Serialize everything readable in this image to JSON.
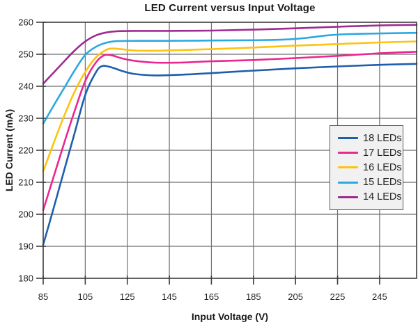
{
  "chart_data": {
    "type": "line",
    "title": "LED Current versus Input Voltage",
    "xlabel": "Input Voltage (V)",
    "ylabel": "LED Current (mA)",
    "xlim": [
      85,
      262.6
    ],
    "ylim": [
      180,
      260
    ],
    "xticks": [
      85,
      105,
      125,
      145,
      165,
      185,
      205,
      225,
      245
    ],
    "yticks": [
      180,
      190,
      200,
      210,
      220,
      230,
      240,
      250,
      260
    ],
    "grid": true,
    "legend_position": "center-right",
    "series": [
      {
        "name": "18 LEDs",
        "color": "#1E5FAC",
        "points": [
          [
            85,
            190.5
          ],
          [
            90,
            202.0
          ],
          [
            95,
            213.8
          ],
          [
            100,
            225.5
          ],
          [
            105,
            237.3
          ],
          [
            110,
            244.3
          ],
          [
            113,
            246.3
          ],
          [
            117,
            246.0
          ],
          [
            122,
            244.9
          ],
          [
            128,
            243.9
          ],
          [
            138,
            243.4
          ],
          [
            150,
            243.6
          ],
          [
            165,
            244.1
          ],
          [
            185,
            244.9
          ],
          [
            205,
            245.6
          ],
          [
            225,
            246.2
          ],
          [
            245,
            246.7
          ],
          [
            262.6,
            247.0
          ]
        ]
      },
      {
        "name": "17 LEDs",
        "color": "#EC268F",
        "points": [
          [
            85,
            201.3
          ],
          [
            90,
            211.8
          ],
          [
            95,
            222.3
          ],
          [
            100,
            232.4
          ],
          [
            105,
            241.6
          ],
          [
            110,
            247.4
          ],
          [
            114,
            249.7
          ],
          [
            118,
            249.6
          ],
          [
            122,
            248.8
          ],
          [
            128,
            248.0
          ],
          [
            138,
            247.4
          ],
          [
            150,
            247.4
          ],
          [
            165,
            247.8
          ],
          [
            185,
            248.2
          ],
          [
            205,
            248.8
          ],
          [
            225,
            249.5
          ],
          [
            245,
            250.3
          ],
          [
            262.6,
            250.8
          ]
        ]
      },
      {
        "name": "16 LEDs",
        "color": "#FFC20E",
        "points": [
          [
            85,
            213.4
          ],
          [
            90,
            222.3
          ],
          [
            95,
            230.8
          ],
          [
            100,
            238.4
          ],
          [
            105,
            244.5
          ],
          [
            110,
            249.0
          ],
          [
            115,
            251.4
          ],
          [
            118,
            251.8
          ],
          [
            122,
            251.6
          ],
          [
            128,
            251.2
          ],
          [
            138,
            251.1
          ],
          [
            150,
            251.3
          ],
          [
            165,
            251.6
          ],
          [
            185,
            252.1
          ],
          [
            205,
            252.7
          ],
          [
            225,
            253.2
          ],
          [
            245,
            253.7
          ],
          [
            262.6,
            254.0
          ]
        ]
      },
      {
        "name": "15 LEDs",
        "color": "#2CA8E0",
        "points": [
          [
            85,
            228.3
          ],
          [
            90,
            234.0
          ],
          [
            95,
            239.5
          ],
          [
            100,
            245.0
          ],
          [
            105,
            249.8
          ],
          [
            110,
            252.3
          ],
          [
            115,
            253.6
          ],
          [
            120,
            254.1
          ],
          [
            130,
            254.2
          ],
          [
            145,
            254.2
          ],
          [
            165,
            254.3
          ],
          [
            185,
            254.4
          ],
          [
            200,
            254.6
          ],
          [
            210,
            255.1
          ],
          [
            220,
            255.9
          ],
          [
            230,
            256.3
          ],
          [
            245,
            256.5
          ],
          [
            262.6,
            256.7
          ]
        ]
      },
      {
        "name": "14 LEDs",
        "color": "#9E2B91",
        "points": [
          [
            85,
            240.8
          ],
          [
            90,
            244.3
          ],
          [
            95,
            247.8
          ],
          [
            100,
            251.2
          ],
          [
            105,
            254.0
          ],
          [
            110,
            255.9
          ],
          [
            115,
            256.8
          ],
          [
            120,
            257.2
          ],
          [
            130,
            257.3
          ],
          [
            145,
            257.3
          ],
          [
            165,
            257.4
          ],
          [
            185,
            257.7
          ],
          [
            205,
            258.1
          ],
          [
            225,
            258.6
          ],
          [
            245,
            259.0
          ],
          [
            262.6,
            259.2
          ]
        ]
      }
    ],
    "colors": {
      "grid": "#6F6F6F",
      "border": "#3C3C3C",
      "tick": "#3C3C3C",
      "text": "#231F20",
      "legend_bg": "#F0F1F0",
      "legend_border": "#58595B",
      "background": "#FFFFFF"
    }
  }
}
